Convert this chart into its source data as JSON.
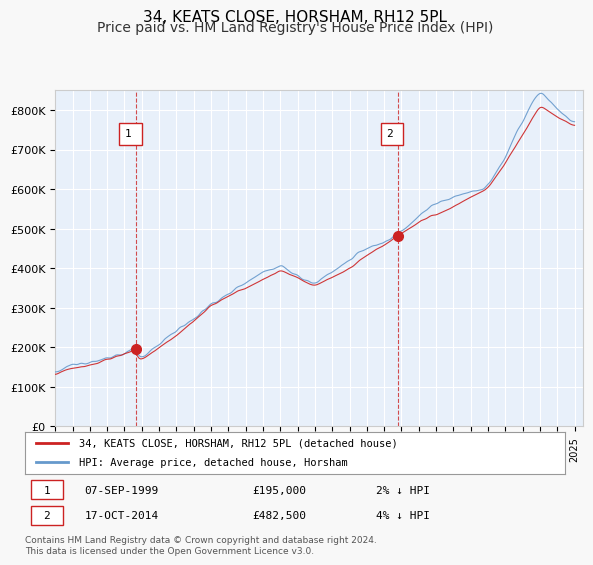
{
  "title": "34, KEATS CLOSE, HORSHAM, RH12 5PL",
  "subtitle": "Price paid vs. HM Land Registry's House Price Index (HPI)",
  "x_start_year": 1995,
  "x_end_year": 2025,
  "y_min": 0,
  "y_max": 850000,
  "y_ticks": [
    0,
    100000,
    200000,
    300000,
    400000,
    500000,
    600000,
    700000,
    800000
  ],
  "y_tick_labels": [
    "£0",
    "£100K",
    "£200K",
    "£300K",
    "£400K",
    "£500K",
    "£600K",
    "£700K",
    "£800K"
  ],
  "sale1_date": 1999.69,
  "sale1_price": 195000,
  "sale1_label": "07-SEP-1999",
  "sale1_amount": "£195,000",
  "sale1_hpi": "2% ↓ HPI",
  "sale2_date": 2014.79,
  "sale2_price": 482500,
  "sale2_label": "17-OCT-2014",
  "sale2_amount": "£482,500",
  "sale2_hpi": "4% ↓ HPI",
  "bg_color": "#ddeeff",
  "plot_bg": "#e8f0fa",
  "grid_color": "#ffffff",
  "hpi_color": "#6699cc",
  "price_color": "#cc2222",
  "marker_color": "#cc2222",
  "dashed_color": "#cc2222",
  "legend1": "34, KEATS CLOSE, HORSHAM, RH12 5PL (detached house)",
  "legend2": "HPI: Average price, detached house, Horsham",
  "footnote": "Contains HM Land Registry data © Crown copyright and database right 2024.\nThis data is licensed under the Open Government Licence v3.0.",
  "title_fontsize": 11,
  "subtitle_fontsize": 10
}
